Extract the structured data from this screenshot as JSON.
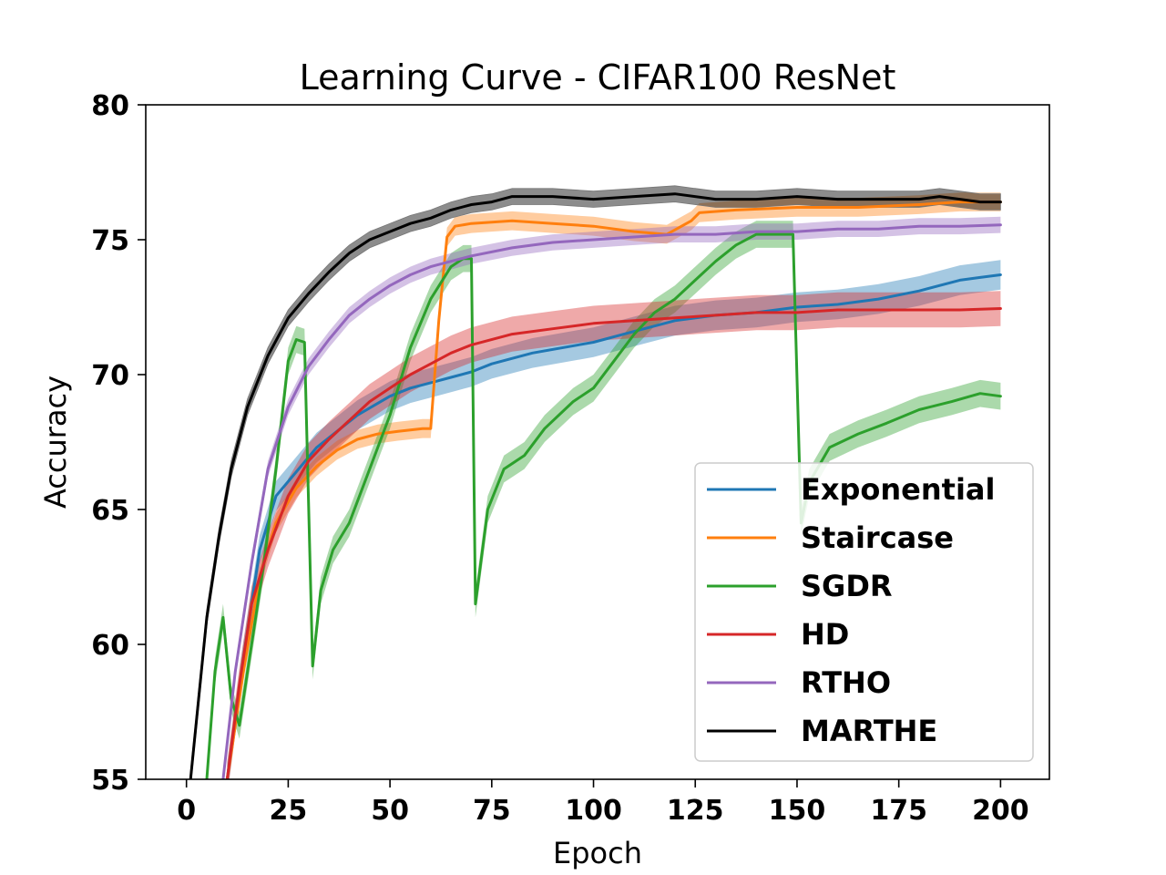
{
  "chart_data": {
    "type": "line",
    "title": "Learning Curve - CIFAR100 ResNet",
    "xlabel": "Epoch",
    "ylabel": "Accuracy",
    "xlim": [
      -10,
      212
    ],
    "ylim": [
      55,
      80
    ],
    "xticks": [
      0,
      25,
      50,
      75,
      100,
      125,
      150,
      175,
      200
    ],
    "yticks": [
      55,
      60,
      65,
      70,
      75,
      80
    ],
    "grid": false,
    "legend_position": "lower-right",
    "band_note": "shaded bands show spread across runs",
    "series": [
      {
        "name": "Exponential",
        "color": "#1f77b4",
        "points": [
          [
            10,
            55
          ],
          [
            14,
            59.5
          ],
          [
            18,
            63.5
          ],
          [
            22,
            65.5
          ],
          [
            27,
            66.4
          ],
          [
            32,
            67.3
          ],
          [
            37,
            67.9
          ],
          [
            42,
            68.5
          ],
          [
            50,
            69.2
          ],
          [
            55,
            69.5
          ],
          [
            60,
            69.7
          ],
          [
            65,
            69.9
          ],
          [
            70,
            70.1
          ],
          [
            75,
            70.4
          ],
          [
            85,
            70.8
          ],
          [
            100,
            71.2
          ],
          [
            110,
            71.6
          ],
          [
            120,
            72.0
          ],
          [
            130,
            72.2
          ],
          [
            140,
            72.3
          ],
          [
            150,
            72.5
          ],
          [
            160,
            72.6
          ],
          [
            170,
            72.8
          ],
          [
            180,
            73.1
          ],
          [
            190,
            73.5
          ],
          [
            195,
            73.6
          ],
          [
            200,
            73.7
          ]
        ],
        "band": 0.55
      },
      {
        "name": "Staircase",
        "color": "#ff7f0e",
        "points": [
          [
            10,
            55
          ],
          [
            14,
            59
          ],
          [
            18,
            62.5
          ],
          [
            22,
            64.5
          ],
          [
            27,
            65.8
          ],
          [
            32,
            66.6
          ],
          [
            37,
            67.2
          ],
          [
            42,
            67.6
          ],
          [
            47,
            67.8
          ],
          [
            52,
            67.9
          ],
          [
            58,
            68.0
          ],
          [
            60,
            68.0
          ],
          [
            62,
            72
          ],
          [
            64,
            75.1
          ],
          [
            66,
            75.5
          ],
          [
            70,
            75.6
          ],
          [
            80,
            75.7
          ],
          [
            90,
            75.6
          ],
          [
            100,
            75.5
          ],
          [
            110,
            75.3
          ],
          [
            118,
            75.2
          ],
          [
            124,
            75.7
          ],
          [
            126,
            76.0
          ],
          [
            135,
            76.1
          ],
          [
            150,
            76.2
          ],
          [
            165,
            76.2
          ],
          [
            180,
            76.3
          ],
          [
            190,
            76.4
          ],
          [
            200,
            76.4
          ]
        ],
        "band": 0.35
      },
      {
        "name": "SGDR",
        "color": "#2ca02c",
        "points": [
          [
            5,
            55
          ],
          [
            7,
            59
          ],
          [
            9,
            61
          ],
          [
            11,
            58
          ],
          [
            13,
            57
          ],
          [
            16,
            60
          ],
          [
            19,
            63
          ],
          [
            22,
            66.5
          ],
          [
            25,
            70.5
          ],
          [
            27,
            71.3
          ],
          [
            29,
            71.2
          ],
          [
            31,
            59.2
          ],
          [
            33,
            62
          ],
          [
            36,
            63.5
          ],
          [
            40,
            64.5
          ],
          [
            45,
            66.5
          ],
          [
            50,
            68.5
          ],
          [
            55,
            71
          ],
          [
            60,
            72.8
          ],
          [
            65,
            74
          ],
          [
            68,
            74.3
          ],
          [
            70,
            74.3
          ],
          [
            71,
            61.5
          ],
          [
            74,
            65
          ],
          [
            78,
            66.5
          ],
          [
            83,
            67
          ],
          [
            88,
            68
          ],
          [
            95,
            69
          ],
          [
            100,
            69.5
          ],
          [
            105,
            70.5
          ],
          [
            110,
            71.5
          ],
          [
            115,
            72.3
          ],
          [
            120,
            72.8
          ],
          [
            125,
            73.5
          ],
          [
            130,
            74.2
          ],
          [
            135,
            74.8
          ],
          [
            140,
            75.2
          ],
          [
            145,
            75.2
          ],
          [
            149,
            75.2
          ],
          [
            151,
            64.5
          ],
          [
            153,
            66
          ],
          [
            158,
            67.3
          ],
          [
            165,
            67.8
          ],
          [
            172,
            68.2
          ],
          [
            180,
            68.7
          ],
          [
            188,
            69
          ],
          [
            195,
            69.3
          ],
          [
            200,
            69.2
          ]
        ],
        "band": 0.5
      },
      {
        "name": "HD",
        "color": "#d62728",
        "points": [
          [
            10,
            55
          ],
          [
            13,
            58.5
          ],
          [
            16,
            61.5
          ],
          [
            20,
            63.5
          ],
          [
            25,
            65.5
          ],
          [
            30,
            66.8
          ],
          [
            35,
            67.6
          ],
          [
            40,
            68.3
          ],
          [
            45,
            69.0
          ],
          [
            50,
            69.5
          ],
          [
            55,
            70.0
          ],
          [
            60,
            70.4
          ],
          [
            65,
            70.8
          ],
          [
            70,
            71.1
          ],
          [
            80,
            71.5
          ],
          [
            90,
            71.7
          ],
          [
            100,
            71.9
          ],
          [
            110,
            72.0
          ],
          [
            120,
            72.1
          ],
          [
            130,
            72.2
          ],
          [
            140,
            72.3
          ],
          [
            150,
            72.3
          ],
          [
            160,
            72.4
          ],
          [
            170,
            72.4
          ],
          [
            180,
            72.4
          ],
          [
            190,
            72.4
          ],
          [
            200,
            72.45
          ]
        ],
        "band": 0.65
      },
      {
        "name": "RTHO",
        "color": "#9467bd",
        "points": [
          [
            9,
            55
          ],
          [
            12,
            59
          ],
          [
            16,
            63
          ],
          [
            20,
            66.5
          ],
          [
            25,
            68.8
          ],
          [
            30,
            70.3
          ],
          [
            35,
            71.3
          ],
          [
            40,
            72.2
          ],
          [
            45,
            72.8
          ],
          [
            50,
            73.3
          ],
          [
            55,
            73.7
          ],
          [
            60,
            74.0
          ],
          [
            65,
            74.2
          ],
          [
            70,
            74.4
          ],
          [
            80,
            74.7
          ],
          [
            90,
            74.9
          ],
          [
            100,
            75.0
          ],
          [
            110,
            75.1
          ],
          [
            120,
            75.2
          ],
          [
            130,
            75.2
          ],
          [
            140,
            75.3
          ],
          [
            150,
            75.3
          ],
          [
            160,
            75.4
          ],
          [
            170,
            75.4
          ],
          [
            180,
            75.5
          ],
          [
            190,
            75.5
          ],
          [
            200,
            75.55
          ]
        ],
        "band": 0.3
      },
      {
        "name": "MARTHE",
        "color": "#000000",
        "points": [
          [
            1,
            55
          ],
          [
            3,
            58
          ],
          [
            5,
            61
          ],
          [
            8,
            64
          ],
          [
            11,
            66.5
          ],
          [
            15,
            68.8
          ],
          [
            20,
            70.7
          ],
          [
            25,
            72.1
          ],
          [
            30,
            73.0
          ],
          [
            35,
            73.8
          ],
          [
            40,
            74.5
          ],
          [
            45,
            75.0
          ],
          [
            50,
            75.3
          ],
          [
            55,
            75.6
          ],
          [
            60,
            75.8
          ],
          [
            65,
            76.1
          ],
          [
            70,
            76.3
          ],
          [
            75,
            76.4
          ],
          [
            80,
            76.6
          ],
          [
            85,
            76.6
          ],
          [
            90,
            76.6
          ],
          [
            100,
            76.5
          ],
          [
            110,
            76.6
          ],
          [
            120,
            76.7
          ],
          [
            130,
            76.5
          ],
          [
            140,
            76.5
          ],
          [
            150,
            76.6
          ],
          [
            160,
            76.5
          ],
          [
            170,
            76.5
          ],
          [
            180,
            76.5
          ],
          [
            185,
            76.6
          ],
          [
            190,
            76.5
          ],
          [
            195,
            76.4
          ],
          [
            200,
            76.4
          ]
        ],
        "band": 0.3
      }
    ]
  }
}
